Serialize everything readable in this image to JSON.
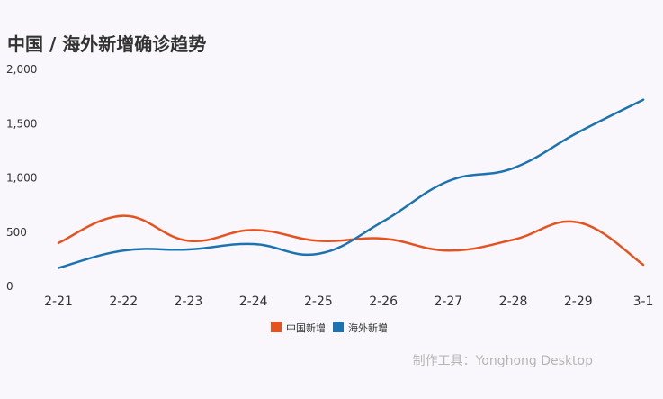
{
  "chart_data": {
    "type": "line",
    "title": "中国 / 海外新增确诊趋势",
    "xlabel": "",
    "ylabel": "",
    "categories": [
      "2-21",
      "2-22",
      "2-23",
      "2-24",
      "2-25",
      "2-26",
      "2-27",
      "2-28",
      "2-29",
      "3-1"
    ],
    "series": [
      {
        "name": "中国新增",
        "color": "#e4531f",
        "values": [
          400,
          650,
          420,
          520,
          420,
          440,
          330,
          430,
          590,
          200
        ]
      },
      {
        "name": "海外新增",
        "color": "#1c73b0",
        "values": [
          170,
          330,
          340,
          390,
          300,
          600,
          970,
          1090,
          1420,
          1720
        ]
      }
    ],
    "ylim": [
      0,
      2000
    ],
    "yticks": [
      0,
      500,
      1000,
      1500,
      2000
    ],
    "ytick_labels": [
      "0",
      "500",
      "1,000",
      "1,500",
      "2,000"
    ],
    "grid": false,
    "legend_position": "bottom-center",
    "watermark": "制作工具：Yonghong Desktop"
  },
  "colors": {
    "background": "#f9f7fb",
    "title": "#333333",
    "axis_text": "#333333",
    "watermark": "#b5b5b5"
  }
}
